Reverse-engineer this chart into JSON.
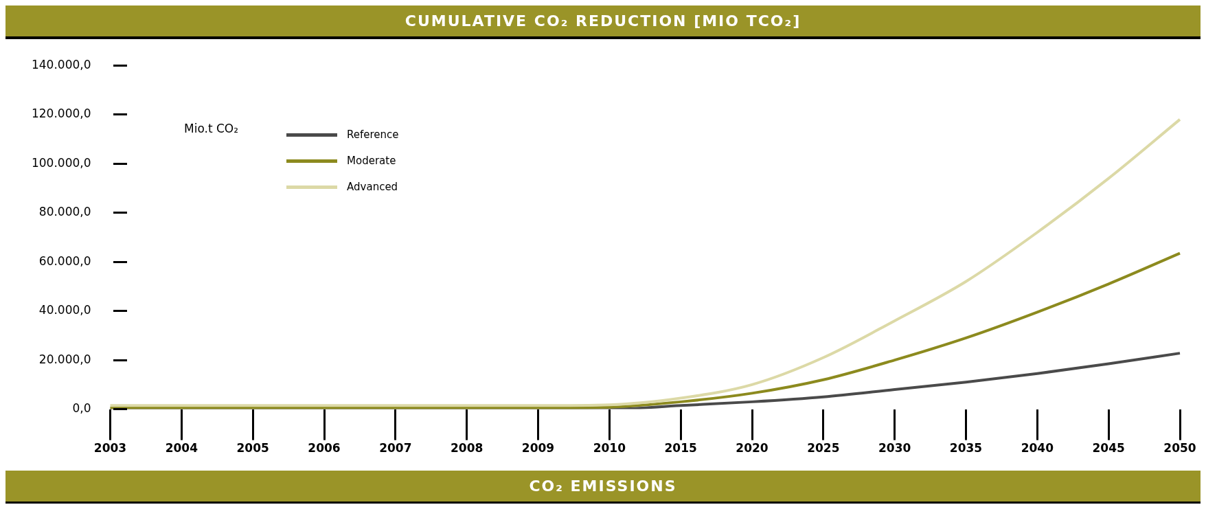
{
  "chart_data": {
    "type": "line",
    "title": "CUMULATIVE CO₂ REDUCTION  [MIO TCO₂]",
    "annotations": [
      "CO₂ EMISSIONS"
    ],
    "legend_title": "Mio.t CO₂",
    "legend": "top left",
    "marker": "none",
    "line_style": "solid",
    "grid": false,
    "categories": [
      "2003",
      "2004",
      "2005",
      "2006",
      "2007",
      "2008",
      "2009",
      "2010",
      "2015",
      "2020",
      "2025",
      "2030",
      "2035",
      "2040",
      "2045",
      "2050"
    ],
    "ylim": [
      0,
      140000
    ],
    "yticks": [
      {
        "value": 0,
        "label": "0,0"
      },
      {
        "value": 20000,
        "label": "20.000,0"
      },
      {
        "value": 40000,
        "label": "40.000,0"
      },
      {
        "value": 60000,
        "label": "60.000,0"
      },
      {
        "value": 80000,
        "label": "80.000,0"
      },
      {
        "value": 100000,
        "label": "100.000,0"
      },
      {
        "value": 120000,
        "label": "120.000,0"
      },
      {
        "value": 140000,
        "label": "140.000,0"
      }
    ],
    "series": [
      {
        "name": "Reference",
        "color": "#4a4a4a",
        "values": [
          0,
          0,
          0,
          0,
          0,
          0,
          0,
          0,
          1500,
          3000,
          5000,
          8000,
          11000,
          14500,
          18500,
          22800
        ]
      },
      {
        "name": "Moderate",
        "color": "#8c8a1e",
        "values": [
          500,
          500,
          500,
          500,
          500,
          500,
          500,
          800,
          3000,
          6500,
          12000,
          20000,
          29000,
          39500,
          51000,
          63500
        ]
      },
      {
        "name": "Advanced",
        "color": "#dcd9a6",
        "values": [
          1500,
          1500,
          1500,
          1500,
          1500,
          1500,
          1500,
          1800,
          4500,
          10000,
          21000,
          36000,
          52000,
          72000,
          94000,
          118000
        ]
      }
    ]
  }
}
